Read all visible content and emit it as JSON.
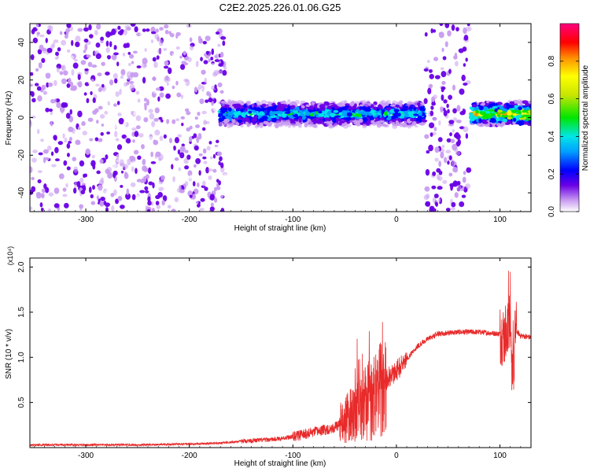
{
  "title": "C2E2.2025.226.01.06.G25",
  "chart_data": [
    {
      "type": "heatmap",
      "xlabel": "Height of straight line (km)",
      "ylabel": "Frequency (Hz)",
      "xlim": [
        -354,
        130
      ],
      "ylim": [
        -50,
        50
      ],
      "xticks": [
        -300,
        -200,
        -100,
        0,
        100
      ],
      "yticks": [
        -40,
        -20,
        0,
        20,
        40
      ],
      "colorbar": {
        "label": "Normalized spectral amplitude",
        "range": [
          0.0,
          1.0
        ],
        "ticks": [
          0.0,
          0.2,
          0.4,
          0.6,
          0.8
        ],
        "colors": [
          "#ffffff",
          "#c89cf0",
          "#6a00e6",
          "#0000ff",
          "#00a0ff",
          "#00e6e6",
          "#00e600",
          "#c8e600",
          "#ffff00",
          "#ff8c00",
          "#ff0000",
          "#ff0080"
        ]
      },
      "features": [
        {
          "name": "noise region",
          "x": [
            -354,
            -165
          ],
          "freq": [
            -50,
            50
          ],
          "amplitude": 0.15
        },
        {
          "name": "signal band",
          "x": [
            -170,
            27
          ],
          "center_freq": 2,
          "amplitude": 0.5
        },
        {
          "name": "vertical noise strip",
          "x": [
            28,
            70
          ],
          "freq": [
            -50,
            50
          ],
          "amplitude": 0.2
        },
        {
          "name": "signal band",
          "x": [
            72,
            130
          ],
          "center_freq": 2,
          "amplitude": 0.8
        }
      ]
    },
    {
      "type": "line",
      "xlabel": "Height of straight line (km)",
      "ylabel": "SNR (10 * v/v)",
      "y_multiplier": "(x10⁴)",
      "xlim": [
        -354,
        130
      ],
      "ylim": [
        0,
        2.1
      ],
      "xticks": [
        -300,
        -200,
        -100,
        0,
        100
      ],
      "yticks": [
        0.5,
        1.0,
        1.5,
        2.0
      ],
      "ytick_labels": [
        "0.5",
        "1.0",
        "1.5",
        "2.0"
      ],
      "color": "#e82a2a",
      "x": [
        -354,
        -300,
        -250,
        -200,
        -170,
        -150,
        -120,
        -100,
        -80,
        -60,
        -50,
        -40,
        -30,
        -20,
        -10,
        0,
        10,
        20,
        30,
        40,
        60,
        80,
        100,
        105,
        108,
        110,
        112,
        115,
        120,
        130
      ],
      "y": [
        0.03,
        0.03,
        0.03,
        0.04,
        0.05,
        0.07,
        0.09,
        0.12,
        0.17,
        0.22,
        0.3,
        0.4,
        0.5,
        0.55,
        0.75,
        0.85,
        0.98,
        1.12,
        1.2,
        1.26,
        1.28,
        1.28,
        1.26,
        1.25,
        1.3,
        1.6,
        0.7,
        1.3,
        1.24,
        1.22
      ]
    }
  ]
}
